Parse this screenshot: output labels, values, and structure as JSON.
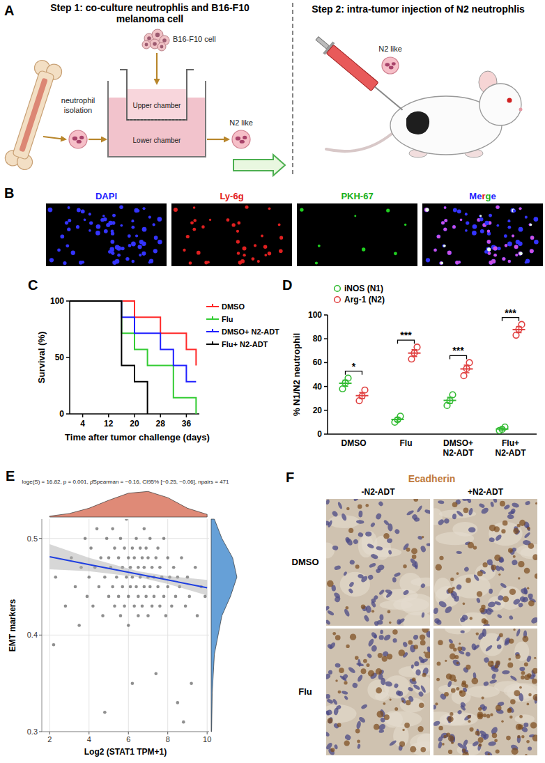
{
  "panel_a": {
    "letter": "A",
    "step1_title": "Step 1: co-culture neutrophlis and B16-F10 melanoma cell",
    "step2_title": "Step 2:  intra-tumor injection of N2 neutrophlis",
    "isolation_label": "neutrophil isolation",
    "tumor_cell_label": "B16-F10 cell",
    "upper_chamber_label": "Upper chamber",
    "lower_chamber_label": "Lower chamber",
    "cocultured_label": "N2 like",
    "injected_label": "N2 like"
  },
  "panel_b": {
    "letter": "B",
    "channels": [
      {
        "label": "DAPI",
        "color": "#2323ff"
      },
      {
        "label": "Ly-6g",
        "color": "#e31a1a"
      },
      {
        "label": "PKH-67",
        "color": "#18b018"
      },
      {
        "label": "Merge",
        "colors": [
          "#2323ff",
          "#2323ff",
          "#e31a1a",
          "#18b018",
          "#2323ff"
        ]
      }
    ]
  },
  "chart_data": [
    {
      "type": "line",
      "panel_label": "C",
      "line_style": "step",
      "x_label": "Time after tumor challenge (days)",
      "y_label": "Survival (%)",
      "xlim": [
        0,
        40
      ],
      "ylim": [
        0,
        100
      ],
      "xticks": [
        4,
        12,
        20,
        28,
        36
      ],
      "yticks": [
        0,
        50,
        100
      ],
      "legend": "right",
      "series": [
        {
          "name": "DMSO",
          "color": "#ff2a2a",
          "x": [
            0,
            20,
            28,
            36,
            39
          ],
          "values": [
            100,
            85.7,
            71.4,
            57.1,
            42.9
          ]
        },
        {
          "name": "Flu",
          "color": "#33cc33",
          "x": [
            0,
            16,
            20,
            24,
            32,
            39
          ],
          "values": [
            100,
            71.4,
            57.1,
            42.9,
            14.3,
            0
          ]
        },
        {
          "name": "DMSO+ N2-ADT",
          "color": "#2020ff",
          "x": [
            0,
            16,
            20,
            28,
            32,
            36,
            39
          ],
          "values": [
            100,
            85.7,
            71.4,
            57.1,
            42.9,
            28.6,
            28.6
          ]
        },
        {
          "name": "Flu+ N2-ADT",
          "color": "#000000",
          "x": [
            0,
            16,
            20,
            24
          ],
          "values": [
            100,
            42.9,
            28.6,
            0
          ]
        }
      ]
    },
    {
      "type": "dot",
      "panel_label": "D",
      "y_label": "% N1/N2 neutrophil",
      "categories": [
        "DMSO",
        "Flu",
        "DMSO+ N2-ADT",
        "Flu+ N2-ADT"
      ],
      "ylim": [
        0,
        100
      ],
      "yticks": [
        0,
        20,
        40,
        60,
        80,
        100
      ],
      "legend": "top-left",
      "series": [
        {
          "name": "iNOS (N1)",
          "color": "#33bb33",
          "values": [
            42.7,
            12.3,
            28.3,
            4.3
          ],
          "error": [
            2.6,
            1.5,
            2.6,
            0.9
          ],
          "points": [
            [
              38,
              43,
              47
            ],
            [
              10,
              12,
              15
            ],
            [
              24,
              28,
              33
            ],
            [
              3,
              4,
              6
            ]
          ]
        },
        {
          "name": "Arg-1 (N2)",
          "color": "#e04040",
          "values": [
            32.3,
            68,
            54.7,
            87.7
          ],
          "error": [
            2.6,
            2.9,
            3.2,
            2.6
          ],
          "points": [
            [
              28,
              32,
              37
            ],
            [
              63,
              68,
              73
            ],
            [
              49,
              55,
              60
            ],
            [
              83,
              88,
              92
            ]
          ]
        }
      ],
      "significance": [
        "*",
        "***",
        "***",
        "***"
      ]
    },
    {
      "type": "scatter",
      "panel_label": "E",
      "subtitle": "loge(S) = 16.82, p = 0.001, ρ̂Spearman = −0.16, CI95% [−0.25, −0.06], npairs = 471",
      "x_label": "Log2 (STAT1 TPM+1)",
      "y_label": "EMT markers",
      "xlim": [
        1.6,
        10.1
      ],
      "ylim": [
        0.3,
        0.52
      ],
      "xticks": [
        2,
        4,
        6,
        8,
        10
      ],
      "yticks": [
        0.3,
        0.4,
        0.5
      ],
      "grid": true,
      "color": "#333333",
      "x": [
        2.2,
        2.3,
        2.8,
        3.1,
        3.3,
        3.5,
        3.6,
        3.8,
        3.9,
        4.0,
        4.1,
        4.2,
        4.3,
        4.4,
        4.5,
        4.6,
        4.7,
        4.8,
        4.8,
        4.9,
        5.0,
        5.0,
        5.1,
        5.2,
        5.2,
        5.3,
        5.3,
        5.4,
        5.5,
        5.5,
        5.6,
        5.6,
        5.7,
        5.7,
        5.8,
        5.8,
        5.9,
        5.9,
        6.0,
        6.0,
        6.0,
        6.1,
        6.1,
        6.2,
        6.2,
        6.2,
        6.3,
        6.3,
        6.4,
        6.4,
        6.5,
        6.5,
        6.5,
        6.6,
        6.6,
        6.7,
        6.7,
        6.8,
        6.8,
        6.8,
        6.9,
        6.9,
        7.0,
        7.0,
        7.0,
        7.1,
        7.1,
        7.2,
        7.2,
        7.3,
        7.3,
        7.4,
        7.4,
        7.5,
        7.5,
        7.6,
        7.6,
        7.7,
        7.8,
        7.8,
        7.9,
        8.0,
        8.0,
        8.1,
        8.2,
        8.3,
        8.4,
        8.5,
        8.5,
        8.6,
        8.7,
        8.8,
        8.9,
        9.0,
        9.1,
        9.2,
        9.4,
        9.5,
        9.7,
        9.9
      ],
      "values": [
        0.39,
        0.46,
        0.43,
        0.48,
        0.45,
        0.41,
        0.47,
        0.5,
        0.44,
        0.46,
        0.49,
        0.43,
        0.47,
        0.51,
        0.45,
        0.48,
        0.42,
        0.32,
        0.46,
        0.5,
        0.44,
        0.48,
        0.47,
        0.45,
        0.51,
        0.43,
        0.49,
        0.46,
        0.48,
        0.44,
        0.5,
        0.42,
        0.47,
        0.45,
        0.49,
        0.43,
        0.46,
        0.52,
        0.48,
        0.44,
        0.41,
        0.47,
        0.45,
        0.35,
        0.49,
        0.46,
        0.43,
        0.48,
        0.5,
        0.45,
        0.47,
        0.44,
        0.42,
        0.49,
        0.46,
        0.48,
        0.43,
        0.45,
        0.51,
        0.47,
        0.44,
        0.49,
        0.46,
        0.42,
        0.48,
        0.45,
        0.5,
        0.43,
        0.47,
        0.46,
        0.44,
        0.36,
        0.48,
        0.45,
        0.49,
        0.43,
        0.47,
        0.46,
        0.44,
        0.5,
        0.42,
        0.45,
        0.48,
        0.46,
        0.43,
        0.47,
        0.44,
        0.33,
        0.46,
        0.45,
        0.48,
        0.31,
        0.43,
        0.46,
        0.44,
        0.35,
        0.47,
        0.42,
        0.45,
        0.44
      ],
      "fit": {
        "color": "#1f3fe0",
        "x": [
          2,
          4,
          6.5,
          8,
          10
        ],
        "values": [
          0.481,
          0.473,
          0.463,
          0.457,
          0.449
        ],
        "ci_lower": [
          0.468,
          0.466,
          0.46,
          0.453,
          0.441
        ],
        "ci_upper": [
          0.494,
          0.48,
          0.466,
          0.461,
          0.457
        ]
      },
      "marginal_x": {
        "color": "#d9765f",
        "x": [
          2,
          3,
          4,
          5,
          6,
          7,
          8,
          9,
          10
        ],
        "values": [
          0.01,
          0.04,
          0.1,
          0.19,
          0.27,
          0.29,
          0.22,
          0.1,
          0.03
        ],
        "lim": [
          0,
          0.3
        ]
      },
      "marginal_y": {
        "color": "#4b8fd0",
        "y": [
          0.3,
          0.34,
          0.38,
          0.42,
          0.44,
          0.46,
          0.48,
          0.5,
          0.52
        ],
        "values": [
          0.2,
          0.5,
          1.5,
          5,
          9,
          12,
          10,
          5,
          1.5
        ],
        "lim": [
          0,
          13
        ]
      }
    }
  ],
  "panel_f": {
    "letter": "F",
    "title": "Ecadherin",
    "columns": [
      "-N2-ADT",
      "+N2-ADT"
    ],
    "rows": [
      "DMSO",
      "Flu"
    ]
  }
}
